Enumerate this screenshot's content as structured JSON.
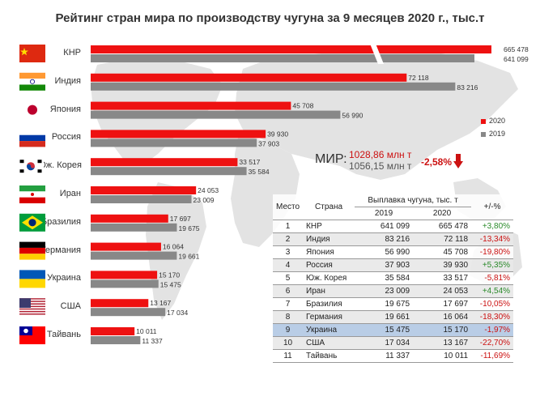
{
  "title": "Рейтинг стран мира по производству чугуна за 9 месяцев 2020 г., тыс.т",
  "colors": {
    "y2020": "#ee1111",
    "y2019": "#888888",
    "map": "#e3e3e3"
  },
  "legend": {
    "y2020": "2020",
    "y2019": "2019"
  },
  "chart_data": {
    "type": "bar",
    "orientation": "horizontal",
    "categories": [
      "КНР",
      "Индия",
      "Япония",
      "Россия",
      "Юж. Корея",
      "Иран",
      "Бразилия",
      "Германия",
      "Украина",
      "США",
      "Тайвань"
    ],
    "series": [
      {
        "name": "2020",
        "values": [
          665478,
          72118,
          45708,
          39930,
          33517,
          24053,
          17697,
          16064,
          15170,
          13167,
          10011
        ]
      },
      {
        "name": "2019",
        "values": [
          641099,
          83216,
          56990,
          37903,
          35584,
          23009,
          19675,
          19661,
          15475,
          17034,
          11337
        ]
      }
    ],
    "value_labels_2020": [
      "665 478",
      "72 118",
      "45 708",
      "39 930",
      "33 517",
      "24 053",
      "17 697",
      "16 064",
      "15 170",
      "13 167",
      "10 011"
    ],
    "value_labels_2019": [
      "641 099",
      "83 216",
      "56 990",
      "37 903",
      "35 584",
      "23 009",
      "19 675",
      "19 661",
      "15 475",
      "17 034",
      "11 337"
    ],
    "axis_break": true,
    "flags": [
      "china-flag",
      "india-flag",
      "japan-flag",
      "russia-flag",
      "south-korea-flag",
      "iran-flag",
      "brazil-flag",
      "germany-flag",
      "ukraine-flag",
      "usa-flag",
      "taiwan-flag"
    ]
  },
  "world_total": {
    "label": "МИР:",
    "v2020": "1028,86 млн т",
    "v2019": "1056,15 млн т",
    "change": "-2,58%"
  },
  "table": {
    "headers": {
      "rank": "Место",
      "country": "Страна",
      "output": "Выплавка чугуна, тыс. т",
      "y2019": "2019",
      "y2020": "2020",
      "change": "+/-%"
    },
    "rows": [
      {
        "rank": "1",
        "country": "КНР",
        "y2019": "641 099",
        "y2020": "665 478",
        "change": "+3,80%",
        "dir": "pos"
      },
      {
        "rank": "2",
        "country": "Индия",
        "y2019": "83 216",
        "y2020": "72 118",
        "change": "-13,34%",
        "dir": "neg"
      },
      {
        "rank": "3",
        "country": "Япония",
        "y2019": "56 990",
        "y2020": "45 708",
        "change": "-19,80%",
        "dir": "neg"
      },
      {
        "rank": "4",
        "country": "Россия",
        "y2019": "37 903",
        "y2020": "39 930",
        "change": "+5,35%",
        "dir": "pos"
      },
      {
        "rank": "5",
        "country": "Юж. Корея",
        "y2019": "35 584",
        "y2020": "33 517",
        "change": "-5,81%",
        "dir": "neg"
      },
      {
        "rank": "6",
        "country": "Иран",
        "y2019": "23 009",
        "y2020": "24 053",
        "change": "+4,54%",
        "dir": "pos"
      },
      {
        "rank": "7",
        "country": "Бразилия",
        "y2019": "19 675",
        "y2020": "17 697",
        "change": "-10,05%",
        "dir": "neg"
      },
      {
        "rank": "8",
        "country": "Германия",
        "y2019": "19 661",
        "y2020": "16 064",
        "change": "-18,30%",
        "dir": "neg"
      },
      {
        "rank": "9",
        "country": "Украина",
        "y2019": "15 475",
        "y2020": "15 170",
        "change": "-1,97%",
        "dir": "neg",
        "highlight": true
      },
      {
        "rank": "10",
        "country": "США",
        "y2019": "17 034",
        "y2020": "13 167",
        "change": "-22,70%",
        "dir": "neg"
      },
      {
        "rank": "11",
        "country": "Тайвань",
        "y2019": "11 337",
        "y2020": "10 011",
        "change": "-11,69%",
        "dir": "neg"
      }
    ]
  }
}
